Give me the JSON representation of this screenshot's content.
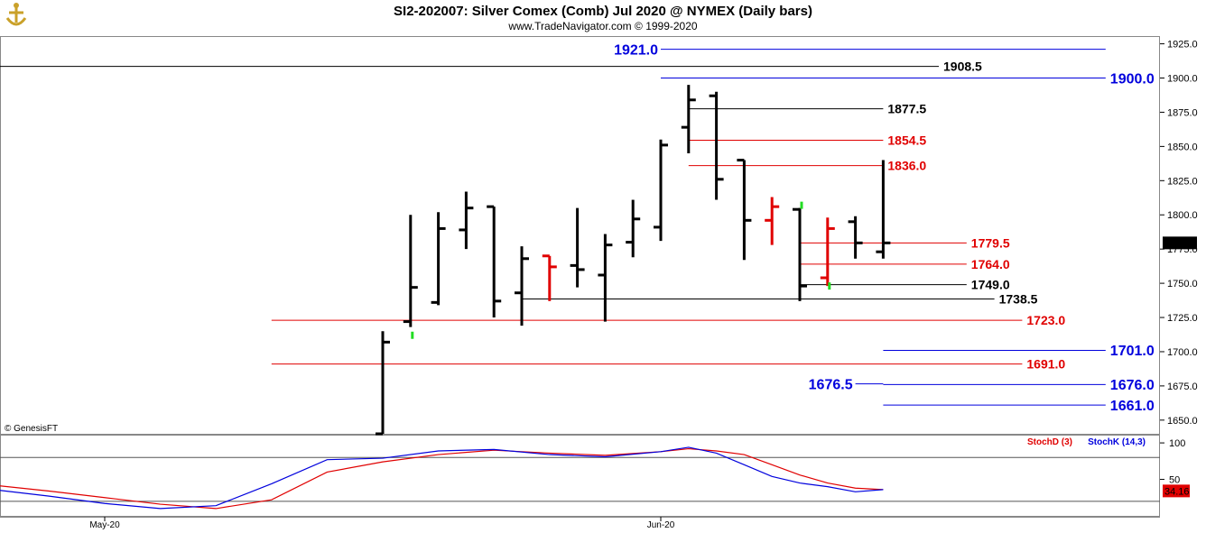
{
  "header": {
    "title": "SI2-202007:  Silver Comex (Comb) Jul 2020 @ NYMEX  (Daily bars)",
    "subtitle": "www.TradeNavigator.com © 1999-2020",
    "copyright": "© GenesisFT"
  },
  "colors": {
    "bar_up": "#000000",
    "bar_down": "#e00000",
    "level_black": "#000000",
    "level_red": "#e00000",
    "level_blue": "#0000dd",
    "stoch_d": "#e00000",
    "stoch_k": "#0000cc",
    "last_price_bg": "#000000",
    "stoch_value_bg": "#e00000"
  },
  "chart_data": [
    {
      "type": "ohlc",
      "ylim": [
        1640,
        1930
      ],
      "yticks": [
        "1650.0",
        "1675.0",
        "1700.0",
        "1725.0",
        "1750.0",
        "1775.0",
        "1800.0",
        "1825.0",
        "1850.0",
        "1875.0",
        "1900.0",
        "1925.0"
      ],
      "x_labels": [
        {
          "label": "May-20",
          "bar_index": -10
        },
        {
          "label": "Jun-20",
          "bar_index": 10
        }
      ],
      "last_price": "1779.5",
      "bars": [
        {
          "i": 0,
          "o": 1640,
          "h": 1715,
          "l": 1640,
          "c": 1707,
          "color": "black"
        },
        {
          "i": 1,
          "o": 1722,
          "h": 1800,
          "l": 1718,
          "c": 1747,
          "color": "black"
        },
        {
          "i": 2,
          "o": 1736,
          "h": 1802,
          "l": 1734,
          "c": 1790,
          "color": "black"
        },
        {
          "i": 3,
          "o": 1789,
          "h": 1817,
          "l": 1775,
          "c": 1805,
          "color": "black"
        },
        {
          "i": 4,
          "o": 1806,
          "h": 1806,
          "l": 1725,
          "c": 1737,
          "color": "black"
        },
        {
          "i": 5,
          "o": 1743,
          "h": 1777,
          "l": 1719,
          "c": 1768,
          "color": "black"
        },
        {
          "i": 6,
          "o": 1770,
          "h": 1770,
          "l": 1737,
          "c": 1762,
          "color": "red"
        },
        {
          "i": 7,
          "o": 1763,
          "h": 1805,
          "l": 1747,
          "c": 1760,
          "color": "black"
        },
        {
          "i": 8,
          "o": 1756,
          "h": 1786,
          "l": 1722,
          "c": 1778,
          "color": "black"
        },
        {
          "i": 9,
          "o": 1780,
          "h": 1811,
          "l": 1769,
          "c": 1797,
          "color": "black"
        },
        {
          "i": 10,
          "o": 1791,
          "h": 1855,
          "l": 1781,
          "c": 1851,
          "color": "black"
        },
        {
          "i": 11,
          "o": 1864,
          "h": 1895,
          "l": 1845,
          "c": 1884,
          "color": "black"
        },
        {
          "i": 12,
          "o": 1887,
          "h": 1890,
          "l": 1811,
          "c": 1826,
          "color": "black"
        },
        {
          "i": 13,
          "o": 1840,
          "h": 1840,
          "l": 1767,
          "c": 1796,
          "color": "black"
        },
        {
          "i": 14,
          "o": 1796,
          "h": 1813,
          "l": 1778,
          "c": 1806,
          "color": "red"
        },
        {
          "i": 15,
          "o": 1804,
          "h": 1805,
          "l": 1737,
          "c": 1748,
          "color": "black"
        },
        {
          "i": 16,
          "o": 1754,
          "h": 1798,
          "l": 1748,
          "c": 1790,
          "color": "red"
        },
        {
          "i": 17,
          "o": 1795,
          "h": 1799,
          "l": 1768,
          "c": 1779.5,
          "color": "black"
        },
        {
          "i": 18,
          "o": 1773,
          "h": 1840,
          "l": 1768,
          "c": 1779.5,
          "color": "black"
        }
      ],
      "green_markers": [
        {
          "i": 1,
          "v": 1712
        },
        {
          "i": 15,
          "v": 1807
        },
        {
          "i": 16,
          "v": 1748
        }
      ],
      "levels": [
        {
          "value": 1921.0,
          "label": "1921.0",
          "color": "blue",
          "from_bar": 10,
          "to_bar": 26,
          "label_side": "left"
        },
        {
          "value": 1908.5,
          "label": "1908.5",
          "color": "black",
          "from_bar": -30,
          "to_bar": 20,
          "label_side": "right"
        },
        {
          "value": 1900.0,
          "label": "1900.0",
          "color": "blue",
          "from_bar": 10,
          "to_bar": 26,
          "label_side": "right"
        },
        {
          "value": 1877.5,
          "label": "1877.5",
          "color": "black",
          "from_bar": 11,
          "to_bar": 18,
          "label_side": "right"
        },
        {
          "value": 1854.5,
          "label": "1854.5",
          "color": "red",
          "from_bar": 11,
          "to_bar": 18,
          "label_side": "right"
        },
        {
          "value": 1836.0,
          "label": "1836.0",
          "color": "red",
          "from_bar": 11,
          "to_bar": 18,
          "label_side": "right"
        },
        {
          "value": 1779.5,
          "label": "1779.5",
          "color": "red",
          "from_bar": 15,
          "to_bar": 21,
          "label_side": "right"
        },
        {
          "value": 1764.0,
          "label": "1764.0",
          "color": "red",
          "from_bar": 15,
          "to_bar": 21,
          "label_side": "right"
        },
        {
          "value": 1749.0,
          "label": "1749.0",
          "color": "black",
          "from_bar": 15,
          "to_bar": 21,
          "label_side": "right"
        },
        {
          "value": 1738.5,
          "label": "1738.5",
          "color": "black",
          "from_bar": 5,
          "to_bar": 22,
          "label_side": "right"
        },
        {
          "value": 1723.0,
          "label": "1723.0",
          "color": "red",
          "from_bar": -4,
          "to_bar": 23,
          "label_side": "right"
        },
        {
          "value": 1701.0,
          "label": "1701.0",
          "color": "blue",
          "from_bar": 18,
          "to_bar": 26,
          "label_side": "right"
        },
        {
          "value": 1691.0,
          "label": "1691.0",
          "color": "red",
          "from_bar": -4,
          "to_bar": 23,
          "label_side": "right"
        },
        {
          "value": 1676.5,
          "label": "1676.5",
          "color": "blue",
          "from_bar": 17,
          "to_bar": 18,
          "label_side": "left"
        },
        {
          "value": 1676.0,
          "label": "1676.0",
          "color": "blue",
          "from_bar": 18,
          "to_bar": 26,
          "label_side": "right"
        },
        {
          "value": 1661.0,
          "label": "1661.0",
          "color": "blue",
          "from_bar": 18,
          "to_bar": 26,
          "label_side": "right"
        }
      ]
    },
    {
      "type": "line",
      "ylim": [
        0,
        110
      ],
      "yticks": [
        "50",
        "100"
      ],
      "hlines": [
        80,
        20
      ],
      "last_value": "34.16",
      "series": [
        {
          "name": "StochD (3)",
          "color": "red",
          "x": [
            -14,
            -12,
            -10,
            -8,
            -6,
            -4,
            -2,
            0,
            2,
            4,
            6,
            8,
            10,
            11,
            12,
            13,
            14,
            15,
            16,
            17,
            18
          ],
          "values": [
            42,
            34,
            25,
            16,
            10,
            22,
            60,
            74,
            84,
            90,
            86,
            83,
            88,
            92,
            89,
            84,
            70,
            56,
            45,
            38,
            36
          ]
        },
        {
          "name": "StochK (14,3)",
          "color": "blue",
          "x": [
            -14,
            -12,
            -10,
            -8,
            -6,
            -4,
            -2,
            0,
            2,
            4,
            6,
            8,
            10,
            11,
            12,
            13,
            14,
            15,
            16,
            17,
            18
          ],
          "values": [
            36,
            27,
            17,
            10,
            14,
            44,
            77,
            79,
            89,
            91,
            84,
            81,
            88,
            94,
            86,
            70,
            54,
            45,
            40,
            33,
            36
          ]
        }
      ]
    }
  ]
}
